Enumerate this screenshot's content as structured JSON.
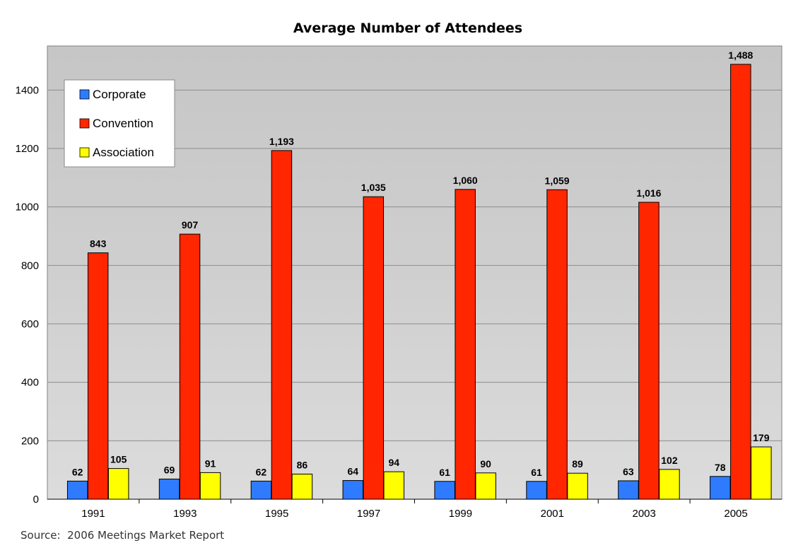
{
  "chart_data": {
    "type": "bar",
    "title": "Average Number of Attendees",
    "xlabel": "",
    "ylabel": "",
    "categories": [
      "1991",
      "1993",
      "1995",
      "1997",
      "1999",
      "2001",
      "2003",
      "2005"
    ],
    "series": [
      {
        "name": "Corporate",
        "color": "#2e7bff",
        "values": [
          62,
          69,
          62,
          64,
          61,
          61,
          63,
          78
        ],
        "labels": [
          "62",
          "69",
          "62",
          "64",
          "61",
          "61",
          "63",
          "78"
        ]
      },
      {
        "name": "Convention",
        "color": "#ff2600",
        "values": [
          843,
          907,
          1193,
          1035,
          1060,
          1059,
          1016,
          1488
        ],
        "labels": [
          "843",
          "907",
          "1,193",
          "1,035",
          "1,060",
          "1,059",
          "1,016",
          "1,488"
        ]
      },
      {
        "name": "Association",
        "color": "#ffff00",
        "values": [
          105,
          91,
          86,
          94,
          90,
          89,
          102,
          179
        ],
        "labels": [
          "105",
          "91",
          "86",
          "94",
          "90",
          "89",
          "102",
          "179"
        ]
      }
    ],
    "ylim": [
      0,
      1500
    ],
    "yticks": [
      0,
      200,
      400,
      600,
      800,
      1000,
      1200,
      1400
    ],
    "grid": true,
    "legend_position": "top-left"
  },
  "source_note": "Source:  2006 Meetings Market Report"
}
